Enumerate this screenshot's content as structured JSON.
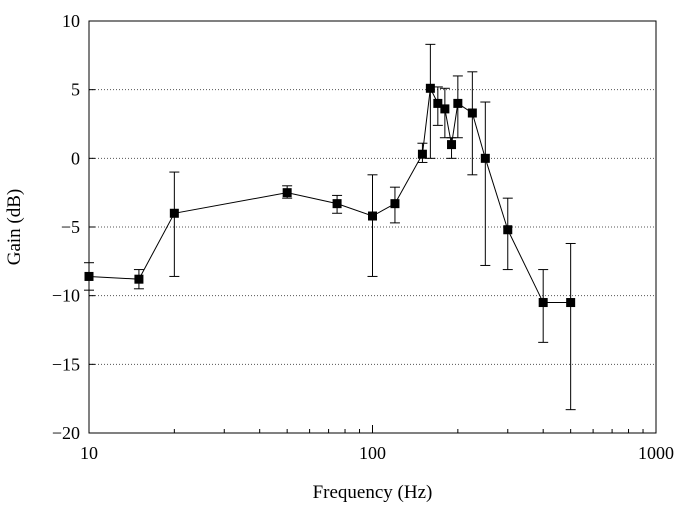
{
  "chart_data": {
    "type": "line",
    "xlabel": "Frequency (Hz)",
    "ylabel": "Gain (dB)",
    "xscale": "log",
    "xlim": [
      10,
      1000
    ],
    "ylim": [
      -20,
      10
    ],
    "grid": "horizontal dotted",
    "x_ticks": [
      "10",
      "100",
      "1000"
    ],
    "y_ticks": [
      "10",
      "5",
      "0",
      "−5",
      "−10",
      "−15",
      "−20"
    ],
    "series": [
      {
        "x": [
          10,
          15,
          20,
          50,
          75,
          100,
          120,
          150,
          160,
          170,
          180,
          190,
          200,
          225,
          250,
          300,
          400,
          500
        ],
        "y": [
          -8.6,
          -8.8,
          -4.0,
          -2.5,
          -3.3,
          -4.2,
          -3.3,
          0.3,
          5.1,
          4.0,
          3.6,
          1.0,
          4.0,
          3.3,
          0.0,
          -5.2,
          -10.5,
          -10.5
        ],
        "err_low": [
          -9.6,
          -9.5,
          -8.6,
          -2.9,
          -4.0,
          -8.6,
          -4.7,
          -0.3,
          0.0,
          2.4,
          1.5,
          0.0,
          1.5,
          -1.2,
          -7.8,
          -8.1,
          -13.4,
          -18.3
        ],
        "err_high": [
          -7.6,
          -8.1,
          -1.0,
          -2.0,
          -2.7,
          -1.2,
          -2.1,
          1.1,
          8.3,
          5.2,
          5.1,
          1.5,
          6.0,
          6.3,
          4.1,
          -2.9,
          -8.1,
          -6.2
        ]
      }
    ]
  }
}
